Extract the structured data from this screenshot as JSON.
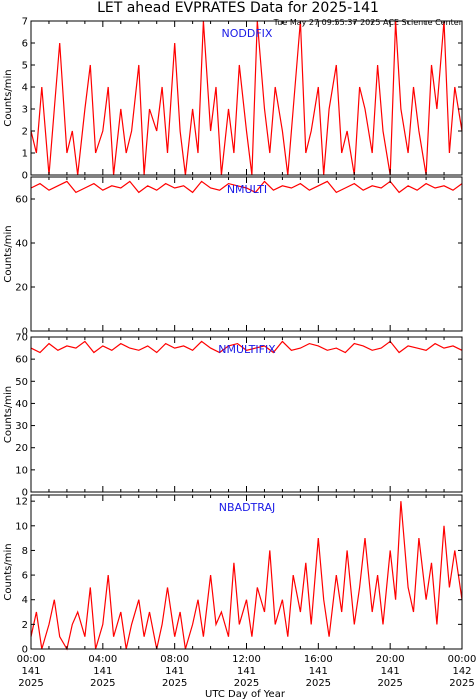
{
  "title": "LET ahead EVPRATES Data for 2025-141",
  "timestamp": "Tue May 27 09:55:37 2025 ACE Science Center",
  "xlabel": "UTC Day of Year",
  "colors": {
    "series": "#ff0000",
    "series_label": "#1a1ae6",
    "axes": "#000000"
  },
  "chart_data": [
    {
      "type": "line",
      "series_name": "NODDFIX",
      "ylabel": "Counts/min",
      "ylim": [
        0,
        7
      ],
      "yticks": [
        "0",
        "1",
        "2",
        "3",
        "4",
        "5",
        "6",
        "7"
      ],
      "xlim": [
        0,
        24
      ],
      "xticks": [
        {
          "time": "00:00",
          "day": "141",
          "year": "2025"
        },
        {
          "time": "04:00",
          "day": "141",
          "year": "2025"
        },
        {
          "time": "08:00",
          "day": "141",
          "year": "2025"
        },
        {
          "time": "12:00",
          "day": "141",
          "year": "2025"
        },
        {
          "time": "16:00",
          "day": "141",
          "year": "2025"
        },
        {
          "time": "20:00",
          "day": "141",
          "year": "2025"
        },
        {
          "time": "00:00",
          "day": "142",
          "year": "2025"
        }
      ],
      "x_hours": [
        0.0,
        0.3,
        0.6,
        1.0,
        1.3,
        1.6,
        2.0,
        2.3,
        2.6,
        3.0,
        3.3,
        3.6,
        4.0,
        4.3,
        4.6,
        5.0,
        5.3,
        5.6,
        6.0,
        6.3,
        6.6,
        7.0,
        7.3,
        7.6,
        8.0,
        8.3,
        8.6,
        9.0,
        9.3,
        9.6,
        10.0,
        10.3,
        10.6,
        11.0,
        11.3,
        11.6,
        12.0,
        12.3,
        12.6,
        13.0,
        13.3,
        13.6,
        14.0,
        14.3,
        14.6,
        15.0,
        15.3,
        15.6,
        16.0,
        16.3,
        16.6,
        17.0,
        17.3,
        17.6,
        18.0,
        18.3,
        18.6,
        19.0,
        19.3,
        19.6,
        20.0,
        20.3,
        20.6,
        21.0,
        21.3,
        21.6,
        22.0,
        22.3,
        22.6,
        23.0,
        23.3,
        23.6,
        24.0
      ],
      "values": [
        2,
        1,
        4,
        0,
        3,
        6,
        1,
        2,
        0,
        3,
        5,
        1,
        2,
        4,
        0,
        3,
        1,
        2,
        5,
        0,
        3,
        2,
        4,
        1,
        6,
        2,
        0,
        3,
        1,
        7,
        2,
        4,
        0,
        3,
        1,
        5,
        2,
        0,
        7,
        3,
        1,
        4,
        2,
        0,
        3,
        7,
        1,
        2,
        4,
        0,
        3,
        5,
        1,
        2,
        0,
        4,
        3,
        1,
        5,
        2,
        0,
        7,
        3,
        1,
        4,
        2,
        0,
        5,
        3,
        7,
        1,
        4,
        2
      ]
    },
    {
      "type": "line",
      "series_name": "NMULTI",
      "ylabel": "Counts/min",
      "ylim": [
        0,
        70
      ],
      "yticks": [
        "0",
        "20",
        "40",
        "60"
      ],
      "xlim": [
        0,
        24
      ],
      "x_hours": [
        0.0,
        0.5,
        1.0,
        1.5,
        2.0,
        2.5,
        3.0,
        3.5,
        4.0,
        4.5,
        5.0,
        5.5,
        6.0,
        6.5,
        7.0,
        7.5,
        8.0,
        8.5,
        9.0,
        9.5,
        10.0,
        10.5,
        11.0,
        11.5,
        12.0,
        12.5,
        13.0,
        13.5,
        14.0,
        14.5,
        15.0,
        15.5,
        16.0,
        16.5,
        17.0,
        17.5,
        18.0,
        18.5,
        19.0,
        19.5,
        20.0,
        20.5,
        21.0,
        21.5,
        22.0,
        22.5,
        23.0,
        23.5,
        24.0
      ],
      "values": [
        65,
        67,
        64,
        66,
        68,
        63,
        65,
        67,
        64,
        66,
        65,
        68,
        63,
        66,
        64,
        67,
        65,
        66,
        63,
        68,
        65,
        64,
        67,
        66,
        65,
        63,
        68,
        64,
        66,
        65,
        67,
        64,
        66,
        68,
        63,
        65,
        67,
        64,
        66,
        65,
        68,
        63,
        66,
        64,
        67,
        65,
        66,
        64,
        67
      ]
    },
    {
      "type": "line",
      "series_name": "NMULTIFIX",
      "ylabel": "Counts/min",
      "ylim": [
        0,
        70
      ],
      "yticks": [
        "0",
        "10",
        "20",
        "30",
        "40",
        "50",
        "60",
        "70"
      ],
      "xlim": [
        0,
        24
      ],
      "x_hours": [
        0.0,
        0.5,
        1.0,
        1.5,
        2.0,
        2.5,
        3.0,
        3.5,
        4.0,
        4.5,
        5.0,
        5.5,
        6.0,
        6.5,
        7.0,
        7.5,
        8.0,
        8.5,
        9.0,
        9.5,
        10.0,
        10.5,
        11.0,
        11.5,
        12.0,
        12.5,
        13.0,
        13.5,
        14.0,
        14.5,
        15.0,
        15.5,
        16.0,
        16.5,
        17.0,
        17.5,
        18.0,
        18.5,
        19.0,
        19.5,
        20.0,
        20.5,
        21.0,
        21.5,
        22.0,
        22.5,
        23.0,
        23.5,
        24.0
      ],
      "values": [
        65,
        63,
        67,
        64,
        66,
        65,
        68,
        63,
        66,
        64,
        67,
        65,
        64,
        66,
        63,
        67,
        65,
        66,
        64,
        68,
        65,
        63,
        66,
        67,
        64,
        65,
        66,
        63,
        68,
        64,
        65,
        67,
        66,
        64,
        65,
        63,
        67,
        66,
        64,
        65,
        68,
        63,
        66,
        65,
        64,
        67,
        65,
        66,
        64
      ]
    },
    {
      "type": "line",
      "series_name": "NBADTRAJ",
      "ylabel": "Counts/min",
      "ylim": [
        0,
        12.5
      ],
      "yticks": [
        "0",
        "2",
        "4",
        "6",
        "8",
        "10",
        "12"
      ],
      "xlim": [
        0,
        24
      ],
      "x_hours": [
        0.0,
        0.3,
        0.6,
        1.0,
        1.3,
        1.6,
        2.0,
        2.3,
        2.6,
        3.0,
        3.3,
        3.6,
        4.0,
        4.3,
        4.6,
        5.0,
        5.3,
        5.6,
        6.0,
        6.3,
        6.6,
        7.0,
        7.3,
        7.6,
        8.0,
        8.3,
        8.6,
        9.0,
        9.3,
        9.6,
        10.0,
        10.3,
        10.6,
        11.0,
        11.3,
        11.6,
        12.0,
        12.3,
        12.6,
        13.0,
        13.3,
        13.6,
        14.0,
        14.3,
        14.6,
        15.0,
        15.3,
        15.6,
        16.0,
        16.3,
        16.6,
        17.0,
        17.3,
        17.6,
        18.0,
        18.3,
        18.6,
        19.0,
        19.3,
        19.6,
        20.0,
        20.3,
        20.6,
        21.0,
        21.3,
        21.6,
        22.0,
        22.3,
        22.6,
        23.0,
        23.3,
        23.6,
        24.0
      ],
      "values": [
        1,
        3,
        0,
        2,
        4,
        1,
        0,
        2,
        3,
        1,
        5,
        0,
        2,
        6,
        1,
        3,
        0,
        2,
        4,
        1,
        3,
        0,
        2,
        5,
        1,
        3,
        0,
        2,
        4,
        1,
        6,
        2,
        3,
        1,
        7,
        2,
        4,
        1,
        5,
        3,
        8,
        2,
        4,
        1,
        6,
        3,
        7,
        2,
        9,
        4,
        1,
        6,
        3,
        8,
        2,
        5,
        9,
        3,
        6,
        2,
        8,
        4,
        12,
        5,
        3,
        9,
        4,
        7,
        2,
        10,
        5,
        8,
        4
      ]
    }
  ]
}
